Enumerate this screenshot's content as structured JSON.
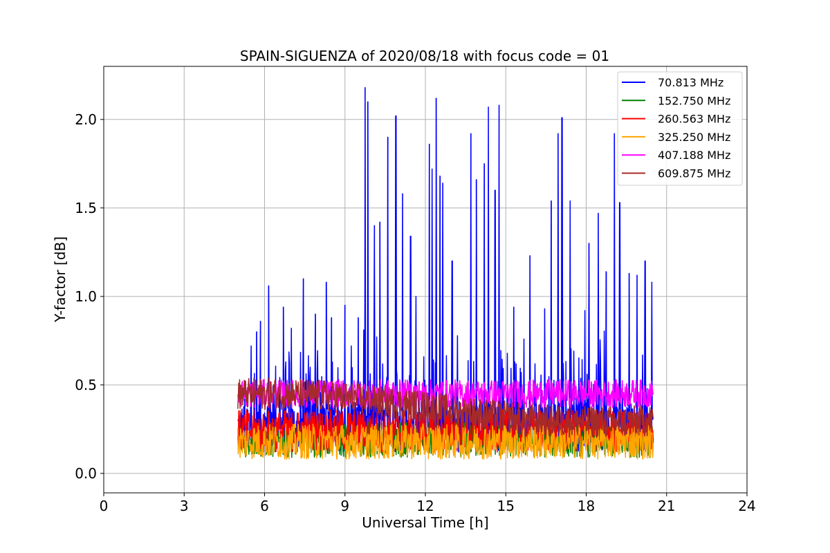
{
  "chart_data": {
    "type": "line",
    "title": "SPAIN-SIGUENZA of 2020/08/18 with focus code = 01",
    "xlabel": "Universal Time [h]",
    "ylabel": "Y-factor [dB]",
    "xlim": [
      0,
      24
    ],
    "ylim": [
      -0.11,
      2.3
    ],
    "xticks": [
      0,
      3,
      6,
      9,
      12,
      15,
      18,
      21,
      24
    ],
    "xtick_labels": [
      "0",
      "3",
      "6",
      "9",
      "12",
      "15",
      "18",
      "21",
      "24"
    ],
    "yticks": [
      0.0,
      0.5,
      1.0,
      1.5,
      2.0
    ],
    "ytick_labels": [
      "0.0",
      "0.5",
      "1.0",
      "1.5",
      "2.0"
    ],
    "grid": true,
    "legend_position": "top-right",
    "x_range_observed": [
      5.0,
      20.5
    ],
    "series": [
      {
        "name": " 70.813 MHz",
        "color": "#0000ff",
        "baseline": 0.26,
        "noise": 0.14,
        "peaks": [
          {
            "x": 5.5,
            "y": 0.72
          },
          {
            "x": 5.7,
            "y": 0.8
          },
          {
            "x": 5.85,
            "y": 0.86
          },
          {
            "x": 6.15,
            "y": 1.06
          },
          {
            "x": 6.7,
            "y": 0.94
          },
          {
            "x": 7.0,
            "y": 0.82
          },
          {
            "x": 7.45,
            "y": 1.1
          },
          {
            "x": 7.9,
            "y": 0.9
          },
          {
            "x": 8.3,
            "y": 1.08
          },
          {
            "x": 8.5,
            "y": 0.88
          },
          {
            "x": 9.0,
            "y": 0.95
          },
          {
            "x": 9.5,
            "y": 0.88
          },
          {
            "x": 9.75,
            "y": 2.18
          },
          {
            "x": 9.85,
            "y": 2.1
          },
          {
            "x": 10.1,
            "y": 1.4
          },
          {
            "x": 10.3,
            "y": 1.42
          },
          {
            "x": 10.6,
            "y": 1.9
          },
          {
            "x": 10.9,
            "y": 2.02
          },
          {
            "x": 11.15,
            "y": 1.58
          },
          {
            "x": 11.45,
            "y": 1.34
          },
          {
            "x": 11.65,
            "y": 1.0
          },
          {
            "x": 12.15,
            "y": 1.86
          },
          {
            "x": 12.25,
            "y": 1.72
          },
          {
            "x": 12.4,
            "y": 2.12
          },
          {
            "x": 12.55,
            "y": 1.68
          },
          {
            "x": 12.65,
            "y": 1.64
          },
          {
            "x": 13.0,
            "y": 1.2
          },
          {
            "x": 13.7,
            "y": 1.92
          },
          {
            "x": 13.9,
            "y": 1.66
          },
          {
            "x": 14.2,
            "y": 1.75
          },
          {
            "x": 14.35,
            "y": 2.07
          },
          {
            "x": 14.6,
            "y": 1.6
          },
          {
            "x": 14.75,
            "y": 2.08
          },
          {
            "x": 15.3,
            "y": 0.94
          },
          {
            "x": 15.9,
            "y": 1.23
          },
          {
            "x": 16.45,
            "y": 0.93
          },
          {
            "x": 16.7,
            "y": 1.54
          },
          {
            "x": 16.95,
            "y": 1.92
          },
          {
            "x": 17.1,
            "y": 2.01
          },
          {
            "x": 17.4,
            "y": 1.54
          },
          {
            "x": 17.95,
            "y": 0.92
          },
          {
            "x": 18.1,
            "y": 1.3
          },
          {
            "x": 18.45,
            "y": 1.47
          },
          {
            "x": 18.75,
            "y": 1.14
          },
          {
            "x": 19.05,
            "y": 1.92
          },
          {
            "x": 19.25,
            "y": 1.53
          },
          {
            "x": 19.6,
            "y": 1.13
          },
          {
            "x": 19.9,
            "y": 1.12
          },
          {
            "x": 20.2,
            "y": 1.2
          },
          {
            "x": 20.45,
            "y": 1.08
          }
        ]
      },
      {
        "name": "152.750 MHz",
        "color": "#008000",
        "baseline": 0.19,
        "noise": 0.1,
        "peaks": []
      },
      {
        "name": "260.563 MHz",
        "color": "#ff0000",
        "baseline": 0.24,
        "noise": 0.12,
        "peaks": []
      },
      {
        "name": "325.250 MHz",
        "color": "#ffa500",
        "baseline": 0.18,
        "noise": 0.1,
        "peaks": []
      },
      {
        "name": "407.188 MHz",
        "color": "#ff00ff",
        "baseline": 0.45,
        "noise": 0.08,
        "peaks": []
      },
      {
        "name": "609.875 MHz",
        "color": "#a52a2a",
        "baseline": 0.37,
        "noise": 0.09,
        "peaks": []
      }
    ]
  }
}
